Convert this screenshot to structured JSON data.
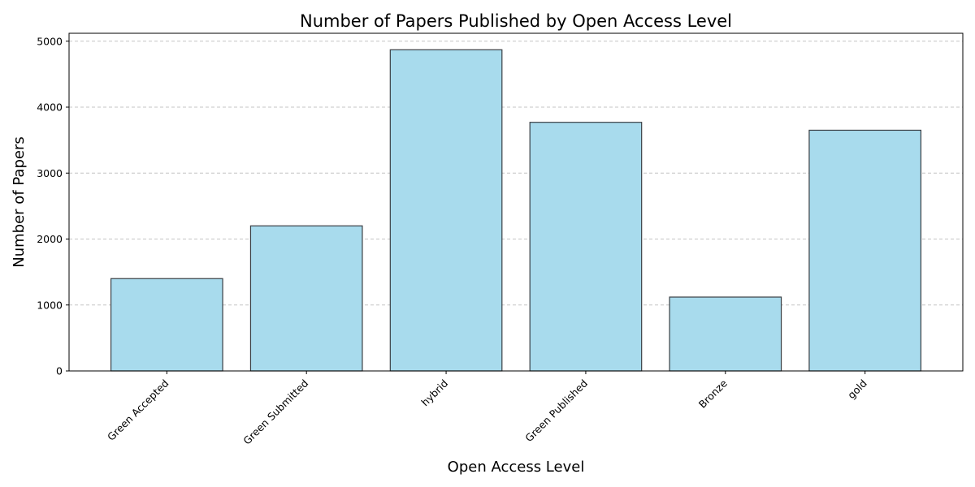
{
  "chart_data": {
    "type": "bar",
    "title": "Number of Papers Published by Open Access Level",
    "xlabel": "Open Access Level",
    "ylabel": "Number of Papers",
    "categories": [
      "Green Accepted",
      "Green Submitted",
      "hybrid",
      "Green Published",
      "Bronze",
      "gold"
    ],
    "values": [
      1400,
      2200,
      4870,
      3770,
      1120,
      3650
    ],
    "ylim": [
      0,
      5120
    ],
    "yticks": [
      0,
      1000,
      2000,
      3000,
      4000,
      5000
    ],
    "grid": "horizontal dashed",
    "legend": "none",
    "colors": {
      "bar_fill": "#a8dbed",
      "bar_edge": "#3a3f44",
      "grid": "#c4c4c4",
      "axis": "#000000"
    }
  }
}
